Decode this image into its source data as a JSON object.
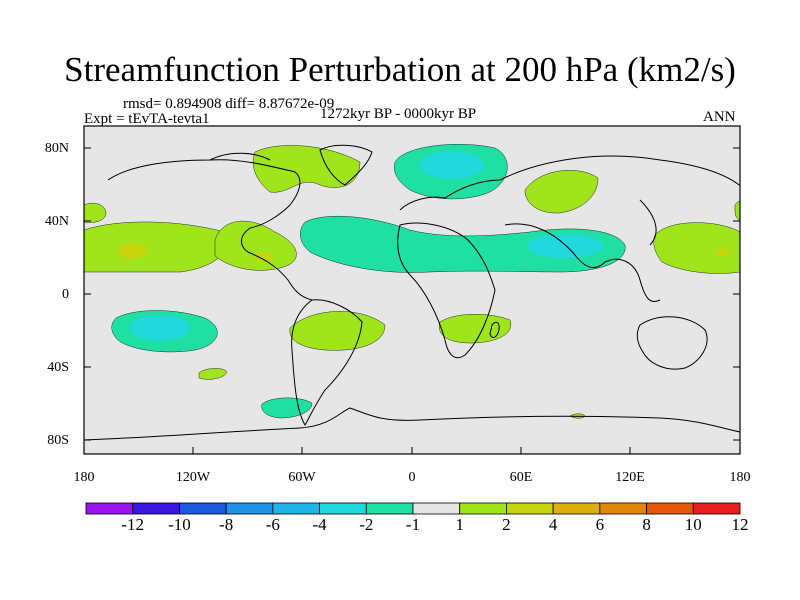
{
  "title": "Streamfunction Perturbation at 200 hPa (km2/s)",
  "stats": "rmsd= 0.894908 diff= 8.87672e-09",
  "experiment": "Expt = tEvTA-tevta1",
  "period": "1272kyr BP - 0000kyr BP",
  "season": "ANN",
  "lat_labels": [
    "80N",
    "40N",
    "0",
    "40S",
    "80S"
  ],
  "lon_labels": [
    "180",
    "120W",
    "60W",
    "0",
    "60E",
    "120E",
    "180"
  ],
  "colorbar": {
    "labels": [
      "-12",
      "-10",
      "-8",
      "-6",
      "-4",
      "-2",
      "-1",
      "1",
      "2",
      "4",
      "6",
      "8",
      "10",
      "12"
    ],
    "colors": [
      "#9b13f0",
      "#3b16de",
      "#1e5ae0",
      "#1e90e6",
      "#1eb6ea",
      "#21d8dc",
      "#1fe0a2",
      "#e6e6e6",
      "#a0e41c",
      "#c6d60e",
      "#dcb00c",
      "#e2860a",
      "#e45808",
      "#e81e1e"
    ]
  },
  "colors": {
    "ocean_background": "#e6e6e6",
    "coast": "#000000"
  }
}
